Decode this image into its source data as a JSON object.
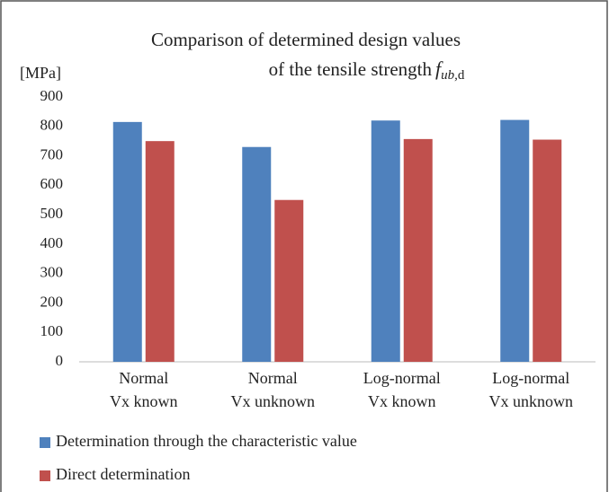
{
  "chart_data": {
    "type": "bar",
    "title": "Comparison of determined design values",
    "subtitle": "of the tensile strength",
    "symbol": {
      "base": "f",
      "subscript": "ub,",
      "subscript_upright": "d"
    },
    "ylabel": "[MPa]",
    "categories": [
      [
        "Normal",
        "Vx known"
      ],
      [
        "Normal",
        "Vx unknown"
      ],
      [
        "Log-normal",
        "Vx known"
      ],
      [
        "Log-normal",
        "Vx unknown"
      ]
    ],
    "series": [
      {
        "name": "Determination through the characteristic value",
        "color": "#4f81bd",
        "values": [
          815,
          730,
          820,
          822
        ]
      },
      {
        "name": "Direct determination",
        "color": "#c0504d",
        "values": [
          750,
          550,
          757,
          755
        ]
      }
    ],
    "ylim": [
      0,
      900
    ],
    "yticks": [
      0,
      100,
      200,
      300,
      400,
      500,
      600,
      700,
      800,
      900
    ],
    "grid": false,
    "legend": "bottom-left"
  }
}
